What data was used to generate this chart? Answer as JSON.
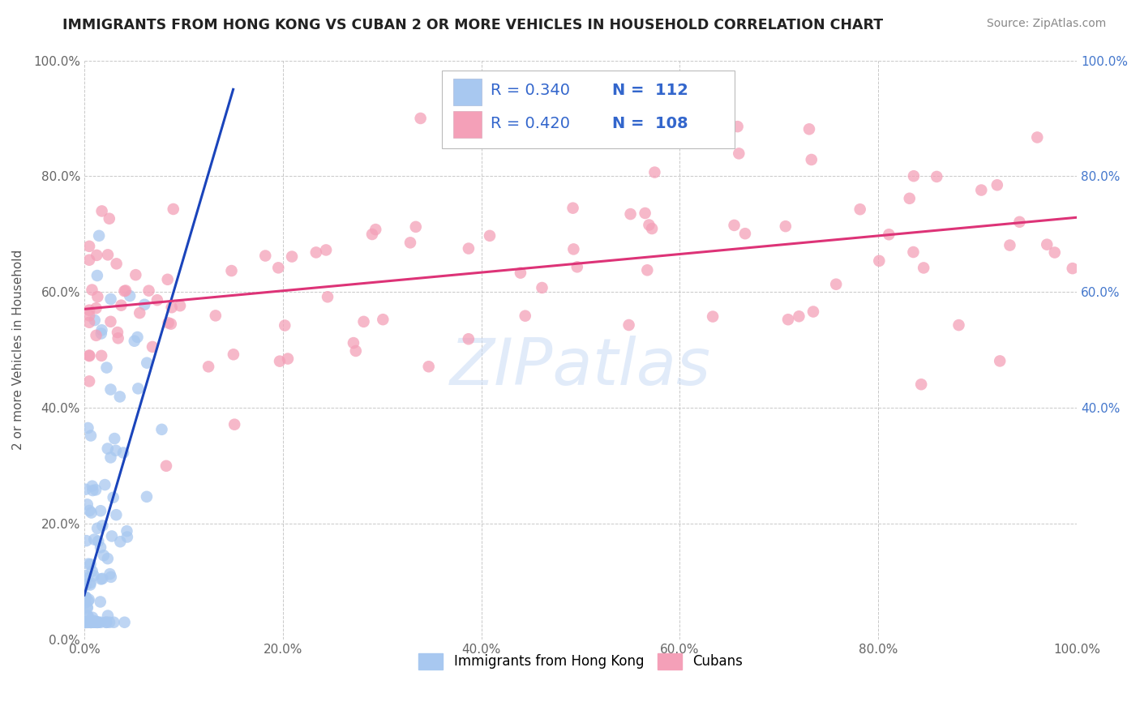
{
  "title": "IMMIGRANTS FROM HONG KONG VS CUBAN 2 OR MORE VEHICLES IN HOUSEHOLD CORRELATION CHART",
  "source": "Source: ZipAtlas.com",
  "ylabel": "2 or more Vehicles in Household",
  "xlim": [
    0.0,
    1.0
  ],
  "ylim": [
    0.0,
    1.0
  ],
  "hk_R": 0.34,
  "hk_N": 112,
  "cuban_R": 0.42,
  "cuban_N": 108,
  "hk_color": "#a8c8f0",
  "cuban_color": "#f4a0b8",
  "hk_line_color": "#1a44bb",
  "cuban_line_color": "#dd3377",
  "legend_text_color": "#3366cc",
  "right_axis_color": "#4477cc",
  "background_color": "#ffffff",
  "grid_color": "#bbbbbb",
  "watermark": "ZIPatlas",
  "xtick_vals": [
    0.0,
    0.2,
    0.4,
    0.6,
    0.8,
    1.0
  ],
  "xtick_labels": [
    "0.0%",
    "20.0%",
    "40.0%",
    "60.0%",
    "80.0%",
    "100.0%"
  ],
  "ytick_vals": [
    0.0,
    0.2,
    0.4,
    0.6,
    0.8,
    1.0
  ],
  "ytick_labels": [
    "0.0%",
    "20.0%",
    "40.0%",
    "60.0%",
    "80.0%",
    "100.0%"
  ],
  "right_ytick_vals": [
    0.4,
    0.6,
    0.8,
    1.0
  ],
  "right_ytick_labels": [
    "40.0%",
    "60.0%",
    "80.0%",
    "100.0%"
  ],
  "hk_seed": 42,
  "cuban_seed": 99
}
